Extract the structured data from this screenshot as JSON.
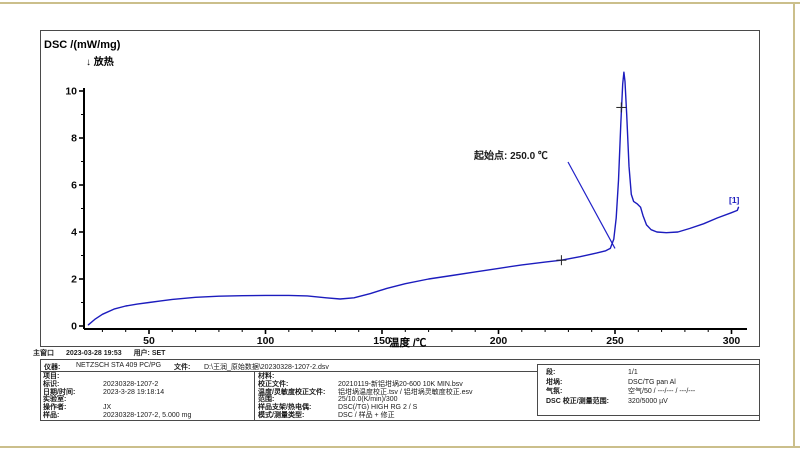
{
  "meta_line": {
    "window": "主窗口",
    "datetime": "2023-03-28 19:53",
    "user_label": "用户: SET"
  },
  "chart": {
    "ylabel": "DSC /(mW/mg)",
    "exo": "↓ 放热",
    "xlabel": "温度 /℃",
    "annotation": "起始点: 250.0 ℃",
    "curve_tag": "[1]",
    "colors": {
      "curve": "#1c1cbe",
      "annotation": "#2121c8",
      "axis": "#000000"
    }
  },
  "chart_data": {
    "type": "line",
    "title": "DSC curve",
    "xlabel": "温度 /℃",
    "ylabel": "DSC /(mW/mg)",
    "exo_direction": "down",
    "xlim": [
      20,
      310
    ],
    "ylim": [
      -0.5,
      11.2
    ],
    "x_ticks": [
      50,
      100,
      150,
      200,
      250,
      300
    ],
    "y_ticks": [
      0,
      2,
      4,
      6,
      8,
      10
    ],
    "grid": false,
    "series": [
      {
        "name": "DSC [1]",
        "x": [
          24,
          27,
          30,
          35,
          40,
          45,
          50,
          55,
          60,
          70,
          80,
          90,
          100,
          110,
          118,
          126,
          132,
          138,
          145,
          152,
          160,
          170,
          180,
          190,
          200,
          210,
          220,
          227,
          235,
          242,
          246,
          248,
          249.5,
          250.5,
          251.5,
          252.5,
          253.3,
          253.8,
          254.3,
          255,
          256,
          257,
          258,
          259.5,
          261,
          262,
          263.5,
          265.5,
          268,
          272,
          277,
          282,
          288,
          294,
          300,
          302.5,
          303
        ],
        "y": [
          0.05,
          0.3,
          0.5,
          0.72,
          0.85,
          0.93,
          1.0,
          1.07,
          1.13,
          1.22,
          1.27,
          1.29,
          1.3,
          1.3,
          1.28,
          1.2,
          1.15,
          1.2,
          1.38,
          1.6,
          1.8,
          2.0,
          2.15,
          2.3,
          2.45,
          2.6,
          2.72,
          2.8,
          2.95,
          3.1,
          3.2,
          3.3,
          3.7,
          4.6,
          6.2,
          8.6,
          10.3,
          10.8,
          10.4,
          9.0,
          6.8,
          5.6,
          5.3,
          5.2,
          5.05,
          4.7,
          4.3,
          4.1,
          4.0,
          3.97,
          4.0,
          4.15,
          4.35,
          4.6,
          4.82,
          4.92,
          5.05
        ]
      }
    ],
    "markers": [
      {
        "x": 227,
        "y": 2.8
      },
      {
        "x": 252.7,
        "y": 9.3
      }
    ],
    "annotations": [
      {
        "type": "onset",
        "label": "起始点: 250.0 ℃",
        "x": 250.0,
        "y": 3.3
      },
      {
        "type": "curve-id",
        "label": "[1]",
        "x": 302,
        "y": 5.2
      }
    ],
    "peak": {
      "x": 253.8,
      "y": 10.8
    }
  },
  "table": {
    "header": {
      "instrument_label": "仪器:",
      "instrument": "NETZSCH STA 409 PC/PG",
      "file_label": "文件:",
      "file": "D:\\王润_原始数据\\20230328-1207-2.dsv"
    },
    "left": [
      [
        "项目:",
        ""
      ],
      [
        "标识:",
        "20230328-1207-2"
      ],
      [
        "日期/时间:",
        "2023-3-28 19:18:14"
      ],
      [
        "实验室:",
        ""
      ],
      [
        "操作者:",
        "JX"
      ],
      [
        "样品:",
        "20230328-1207-2, 5.000 mg"
      ]
    ],
    "middle": [
      [
        "材料:",
        ""
      ],
      [
        "校正文件:",
        "20210119-新铝坩埚20-600 10K MIN.bsv"
      ],
      [
        "温度/灵敏度校正文件:",
        "铝坩埚温度校正.tsv / 铝坩埚灵敏度校正.esv"
      ],
      [
        "范围:",
        "25/10.0(K/min)/300"
      ],
      [
        "样品支架/热电偶:",
        "DSC(/TG) HIGH RG 2 / S"
      ],
      [
        "模式/测量类型:",
        "DSC / 样品 + 修正"
      ]
    ],
    "right": [
      [
        "段:",
        "1/1"
      ],
      [
        "坩埚:",
        "DSC/TG pan Al"
      ],
      [
        "气氛:",
        "空气/50 / ---/--- / ---/---"
      ],
      [
        "DSC 校正/测量范围:",
        "320/5000 µV"
      ]
    ]
  }
}
